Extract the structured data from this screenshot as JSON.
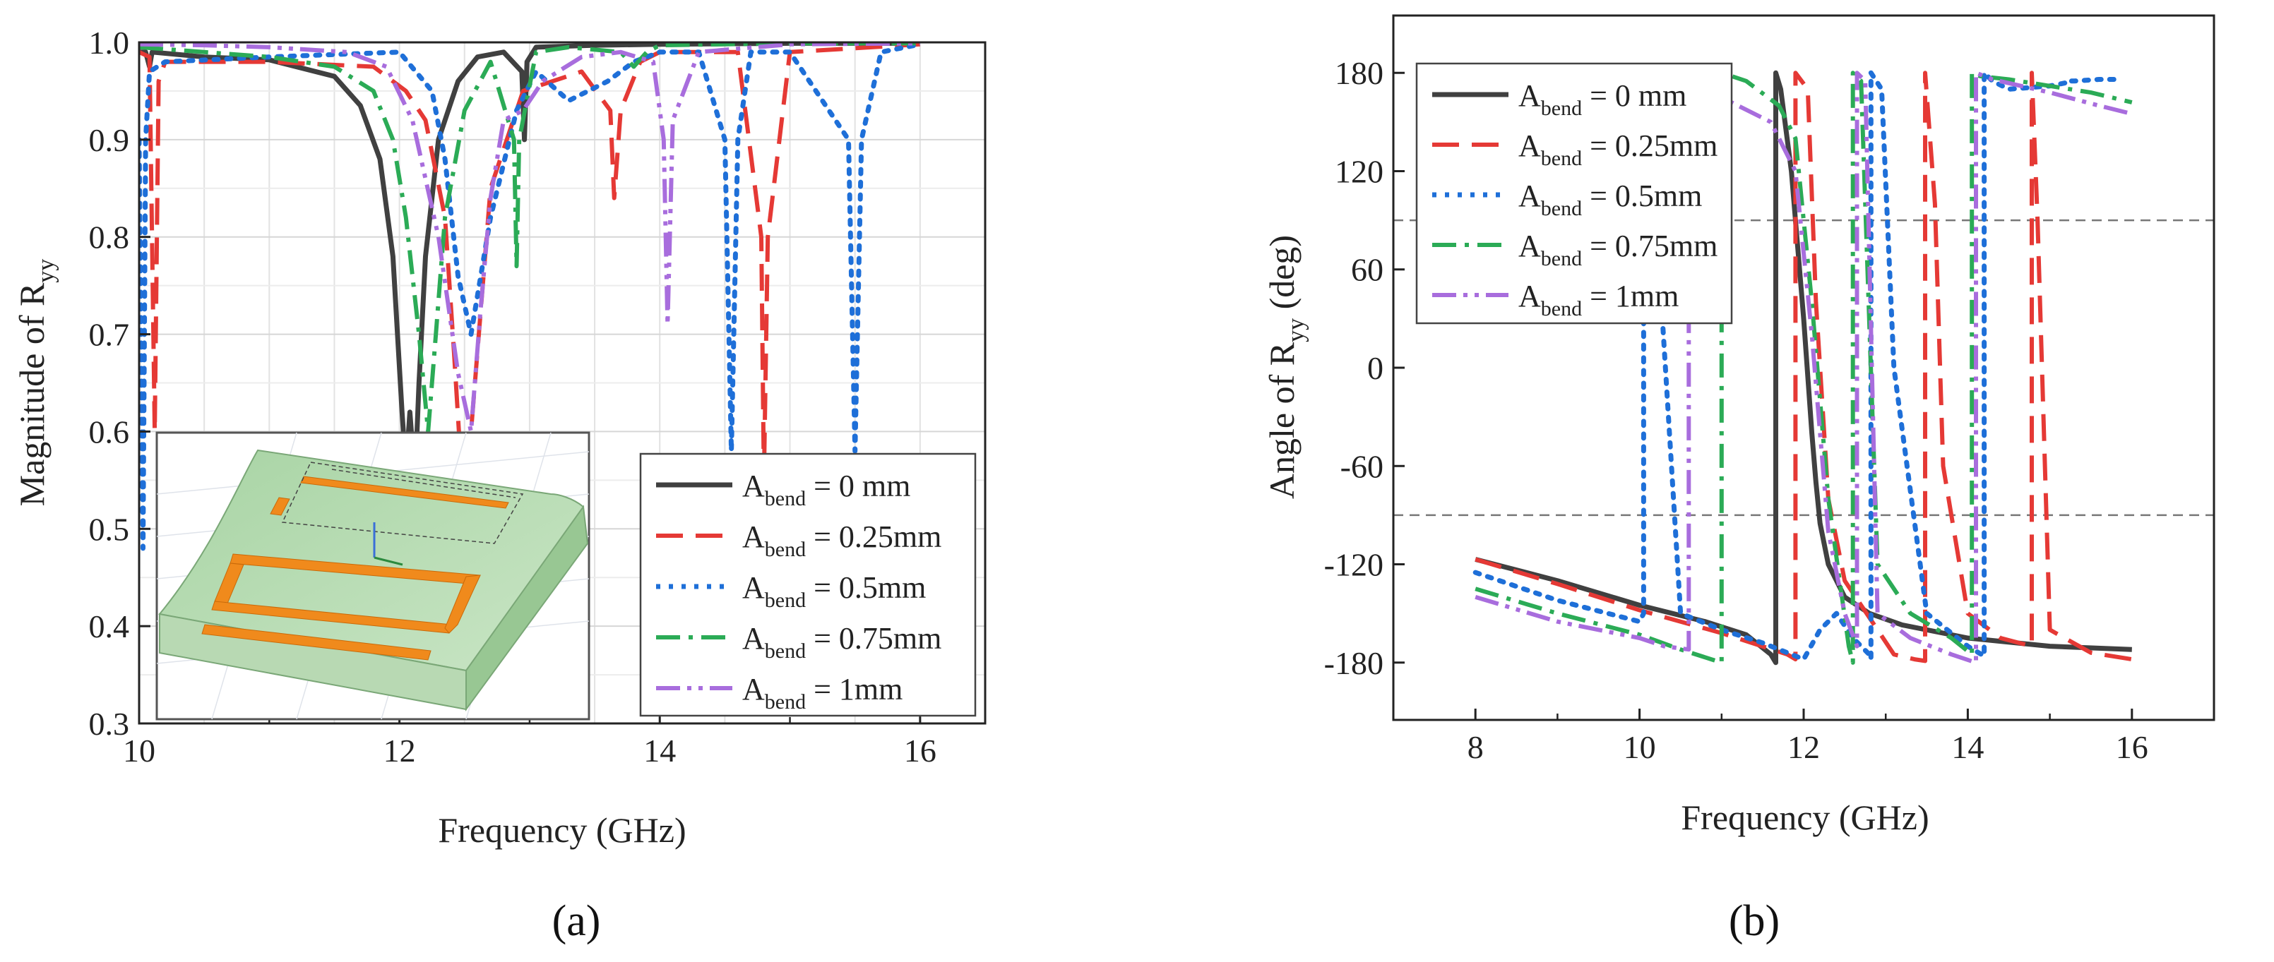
{
  "chart_data": [
    {
      "type": "line",
      "panel_label": "(a)",
      "xlabel": "Frequency (GHz)",
      "ylabel": "Magnitude of R",
      "ylabel_sub": "yy",
      "xlim": [
        10,
        16.5
      ],
      "ylim": [
        0.3,
        1.0
      ],
      "xticks": [
        "10",
        "12",
        "14",
        "16"
      ],
      "yticks": [
        "0.3",
        "0.4",
        "0.5",
        "0.6",
        "0.7",
        "0.8",
        "0.9",
        "1.0"
      ],
      "grid": true,
      "legend_position": "bottom-right",
      "inset": "3D unit cell model (green substrate with orange bent resonator strips)",
      "series": [
        {
          "name": "A",
          "sub": "bend",
          "suffix": " = 0 mm",
          "color": "#404040",
          "dash": "",
          "width": 7,
          "x": [
            10.0,
            10.05,
            10.08,
            10.1,
            10.5,
            11.0,
            11.5,
            11.7,
            11.85,
            11.95,
            12.02,
            12.05,
            12.08,
            12.12,
            12.15,
            12.2,
            12.3,
            12.45,
            12.6,
            12.8,
            12.94,
            12.96,
            12.98,
            13.05,
            13.5,
            14.0,
            15.0,
            16.0
          ],
          "y": [
            0.99,
            0.99,
            0.975,
            0.99,
            0.985,
            0.982,
            0.965,
            0.935,
            0.88,
            0.78,
            0.62,
            0.56,
            0.62,
            0.55,
            0.65,
            0.78,
            0.9,
            0.96,
            0.985,
            0.99,
            0.97,
            0.9,
            0.98,
            0.995,
            0.997,
            0.998,
            0.999,
            0.999
          ]
        },
        {
          "name": "A",
          "sub": "bend",
          "suffix": " = 0.25mm",
          "color": "#e53935",
          "dash": "38,18",
          "width": 6,
          "x": [
            10.0,
            10.08,
            10.12,
            10.15,
            10.2,
            11.0,
            11.8,
            12.05,
            12.2,
            12.35,
            12.42,
            12.48,
            12.55,
            12.7,
            12.95,
            13.4,
            13.62,
            13.65,
            13.7,
            13.85,
            14.0,
            14.6,
            14.78,
            14.8,
            14.83,
            15.0,
            16.0
          ],
          "y": [
            0.99,
            0.985,
            0.6,
            0.96,
            0.98,
            0.98,
            0.975,
            0.95,
            0.92,
            0.82,
            0.68,
            0.55,
            0.6,
            0.85,
            0.95,
            0.97,
            0.93,
            0.84,
            0.93,
            0.98,
            0.99,
            0.99,
            0.8,
            0.55,
            0.8,
            0.99,
            0.998
          ]
        },
        {
          "name": "A",
          "sub": "bend",
          "suffix": " = 0.5mm",
          "color": "#1e6fd8",
          "dash": "6,12",
          "width": 7,
          "x": [
            10.0,
            10.03,
            10.05,
            10.08,
            10.2,
            11.0,
            12.0,
            12.25,
            12.35,
            12.45,
            12.55,
            12.7,
            12.9,
            13.05,
            13.3,
            13.6,
            13.8,
            14.0,
            14.3,
            14.5,
            14.55,
            14.6,
            14.7,
            15.0,
            15.45,
            15.5,
            15.55,
            15.7,
            16.0
          ],
          "y": [
            0.9,
            0.48,
            0.9,
            0.97,
            0.98,
            0.985,
            0.99,
            0.95,
            0.88,
            0.76,
            0.7,
            0.82,
            0.93,
            0.97,
            0.94,
            0.96,
            0.98,
            0.99,
            0.99,
            0.9,
            0.58,
            0.9,
            0.99,
            0.99,
            0.9,
            0.58,
            0.9,
            0.99,
            0.998
          ]
        },
        {
          "name": "A",
          "sub": "bend",
          "suffix": " = 0.75mm",
          "color": "#2bab56",
          "dash": "34,12,6,12",
          "width": 6,
          "x": [
            10.0,
            10.5,
            11.0,
            11.5,
            11.8,
            11.95,
            12.05,
            12.15,
            12.22,
            12.28,
            12.35,
            12.5,
            12.7,
            12.88,
            12.9,
            12.92,
            13.05,
            13.3,
            13.7,
            13.8,
            13.9,
            14.0,
            15.0,
            16.0
          ],
          "y": [
            0.995,
            0.99,
            0.985,
            0.975,
            0.95,
            0.9,
            0.82,
            0.7,
            0.6,
            0.7,
            0.82,
            0.93,
            0.98,
            0.9,
            0.77,
            0.9,
            0.99,
            0.995,
            0.99,
            0.975,
            0.99,
            0.997,
            0.999,
            0.999
          ]
        },
        {
          "name": "A",
          "sub": "bend",
          "suffix": " = 1mm",
          "color": "#a86ddd",
          "dash": "34,10,6,10,6,10",
          "width": 6,
          "x": [
            10.0,
            10.5,
            11.0,
            11.6,
            11.9,
            12.1,
            12.3,
            12.45,
            12.55,
            12.62,
            12.7,
            12.8,
            12.95,
            13.1,
            13.4,
            13.7,
            13.95,
            14.03,
            14.06,
            14.1,
            14.3,
            15.0,
            16.0
          ],
          "y": [
            0.998,
            0.997,
            0.995,
            0.99,
            0.975,
            0.92,
            0.8,
            0.66,
            0.6,
            0.72,
            0.84,
            0.92,
            0.93,
            0.96,
            0.985,
            0.99,
            0.98,
            0.9,
            0.71,
            0.92,
            0.99,
            0.998,
            0.999
          ]
        }
      ]
    },
    {
      "type": "line",
      "panel_label": "(b)",
      "xlabel": "Frequency (GHz)",
      "ylabel": "Angle of R",
      "ylabel_sub": "yy",
      "ylabel_suffix": " (deg)",
      "xlim": [
        7,
        17
      ],
      "ylim": [
        -215,
        215
      ],
      "xticks": [
        "8",
        "10",
        "12",
        "14",
        "16"
      ],
      "yticks": [
        "-180",
        "-120",
        "-60",
        "0",
        "60",
        "120",
        "180"
      ],
      "grid": false,
      "reference_lines": [
        90,
        -90
      ],
      "legend_position": "top-left",
      "series": [
        {
          "name": "A",
          "sub": "bend",
          "suffix": " = 0 mm",
          "color": "#404040",
          "dash": "",
          "width": 7,
          "x": [
            8.0,
            9.0,
            10.0,
            10.8,
            11.3,
            11.6,
            11.66,
            11.66,
            11.72,
            11.85,
            12.0,
            12.1,
            12.15,
            12.2,
            12.3,
            12.5,
            12.8,
            13.2,
            14.0,
            15.0,
            16.0
          ],
          "y": [
            -117,
            -130,
            -145,
            -155,
            -163,
            -175,
            -180,
            180,
            170,
            120,
            30,
            -40,
            -70,
            -95,
            -120,
            -140,
            -150,
            -157,
            -165,
            -170,
            -172
          ]
        },
        {
          "name": "A",
          "sub": "bend",
          "suffix": " = 0.25mm",
          "color": "#e53935",
          "dash": "38,18",
          "width": 6,
          "x": [
            8.0,
            9.0,
            10.0,
            11.0,
            11.8,
            11.9,
            11.9,
            12.05,
            12.15,
            12.3,
            12.5,
            12.9,
            13.1,
            13.35,
            13.48,
            13.48,
            13.6,
            13.7,
            14.0,
            14.4,
            14.78,
            14.78,
            14.85,
            15.0,
            15.5,
            16.0
          ],
          "y": [
            -117,
            -132,
            -148,
            -162,
            -175,
            -178,
            180,
            170,
            40,
            -80,
            -130,
            -160,
            -175,
            -178,
            -179,
            180,
            100,
            -60,
            -150,
            -165,
            -170,
            180,
            90,
            -160,
            -174,
            -178
          ]
        },
        {
          "name": "A",
          "sub": "bend",
          "suffix": " = 0.5mm",
          "color": "#1e6fd8",
          "dash": "6,12",
          "width": 7,
          "x": [
            8.0,
            9.0,
            10.0,
            10.05,
            10.05,
            10.1,
            10.5,
            11.0,
            11.5,
            11.8,
            12.0,
            12.2,
            12.4,
            12.6,
            12.8,
            12.82,
            12.82,
            12.95,
            13.1,
            13.5,
            14.0,
            14.2,
            14.2,
            14.3,
            14.5,
            15.0,
            15.2,
            15.2,
            15.3,
            15.6,
            15.8
          ],
          "y": [
            -125,
            -142,
            -155,
            -150,
            180,
            175,
            -150,
            -160,
            -168,
            -174,
            -178,
            -160,
            -150,
            -165,
            -175,
            -178,
            180,
            170,
            0,
            -150,
            -170,
            -176,
            180,
            175,
            170,
            172,
            174,
            175,
            175,
            176,
            176
          ]
        },
        {
          "name": "A",
          "sub": "bend",
          "suffix": " = 0.75mm",
          "color": "#2bab56",
          "dash": "34,12,6,12",
          "width": 6,
          "x": [
            8.0,
            9.0,
            10.0,
            10.5,
            11.0,
            11.0,
            11.3,
            11.7,
            11.9,
            12.1,
            12.3,
            12.55,
            12.6,
            12.6,
            12.7,
            12.9,
            13.3,
            13.8,
            14.05,
            14.05,
            14.15,
            14.5,
            15.0,
            15.5,
            16.0
          ],
          "y": [
            -135,
            -150,
            -163,
            -172,
            -180,
            180,
            175,
            160,
            140,
            40,
            -80,
            -170,
            -180,
            180,
            175,
            -120,
            -150,
            -165,
            -175,
            180,
            178,
            176,
            172,
            168,
            162
          ]
        },
        {
          "name": "A",
          "sub": "bend",
          "suffix": " = 1mm",
          "color": "#a86ddd",
          "dash": "34,10,6,10,6,10",
          "width": 6,
          "x": [
            8.0,
            9.0,
            10.0,
            10.3,
            10.6,
            10.6,
            10.8,
            11.2,
            11.6,
            11.9,
            12.1,
            12.3,
            12.5,
            12.65,
            12.65,
            12.75,
            12.9,
            13.3,
            13.8,
            14.1,
            14.1,
            14.3,
            15.0,
            15.6,
            16.0
          ],
          "y": [
            -140,
            -155,
            -165,
            -170,
            -172,
            180,
            170,
            160,
            150,
            120,
            20,
            -100,
            -150,
            -170,
            180,
            175,
            -150,
            -165,
            -175,
            -180,
            180,
            176,
            168,
            160,
            155
          ]
        }
      ]
    }
  ]
}
